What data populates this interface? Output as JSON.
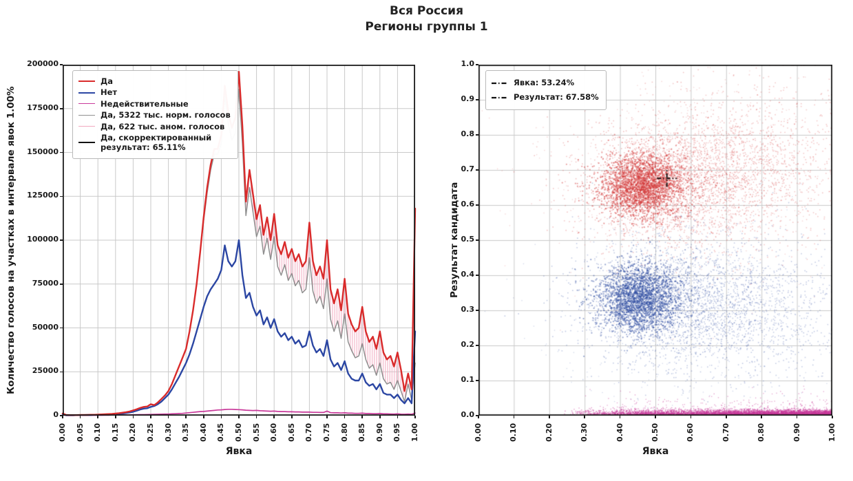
{
  "figure_title": {
    "line1": "Вся Россия",
    "line2": "Регионы группы 1"
  },
  "colors": {
    "yes": "#d92b2b",
    "no": "#2b46a3",
    "invalid": "#c9399a",
    "normal_votes": "#8f8f8f",
    "anomalous_hatch": "#f2a9bf",
    "corrected": "#111111",
    "grid": "#c9c9c9",
    "frame": "#1a1a1a",
    "scatter_yes": "#d63b3b",
    "scatter_no": "#3150a4",
    "scatter_invalid": "#c9399a"
  },
  "chart_data": [
    {
      "type": "line",
      "xlabel": "Явка",
      "ylabel": "Количество голосов на участках в интервале явок 1.00%",
      "xlim": [
        0,
        1
      ],
      "ylim": [
        0,
        200000
      ],
      "grid": true,
      "legend_position": "upper left",
      "xticks": [
        "0.00",
        "0.05",
        "0.10",
        "0.15",
        "0.20",
        "0.25",
        "0.30",
        "0.35",
        "0.40",
        "0.45",
        "0.50",
        "0.55",
        "0.60",
        "0.65",
        "0.70",
        "0.75",
        "0.80",
        "0.85",
        "0.90",
        "0.95",
        "1.00"
      ],
      "yticks": [
        "0",
        "25000",
        "50000",
        "75000",
        "100000",
        "125000",
        "150000",
        "175000",
        "200000"
      ],
      "x_start": 0,
      "x_step": 0.01,
      "legend": [
        "Да",
        "Нет",
        "Недействительные",
        "Да, 5322 тыс. норм. голосов",
        "Да, 622 тыс. аном. голосов",
        "Да, скорректированный\nрезультат: 65.11%"
      ],
      "series": [
        {
          "name": "Да",
          "color": "#d92b2b",
          "width": 2.4,
          "values": [
            1200,
            400,
            300,
            300,
            300,
            400,
            400,
            400,
            500,
            500,
            600,
            700,
            800,
            900,
            1000,
            1200,
            1400,
            1700,
            2000,
            2400,
            3000,
            3600,
            4400,
            5000,
            5200,
            6500,
            6000,
            7500,
            9500,
            11500,
            14000,
            18000,
            23000,
            28000,
            33000,
            38000,
            48000,
            60000,
            75000,
            93000,
            113000,
            130000,
            143000,
            152000,
            152000,
            160000,
            188000,
            173000,
            164000,
            170000,
            196000,
            165000,
            122000,
            140000,
            126000,
            112000,
            120000,
            103000,
            113000,
            100000,
            115000,
            97000,
            92000,
            99000,
            90000,
            95000,
            88000,
            92000,
            85000,
            88000,
            110000,
            88000,
            80000,
            85000,
            78000,
            100000,
            72000,
            64000,
            72000,
            60000,
            78000,
            58000,
            52000,
            48000,
            50000,
            62000,
            48000,
            42000,
            45000,
            38000,
            48000,
            36000,
            32000,
            34000,
            28000,
            36000,
            26000,
            14000,
            24000,
            15000,
            118000
          ]
        },
        {
          "name": "Нет",
          "color": "#2b46a3",
          "width": 2.4,
          "values": [
            800,
            200,
            200,
            200,
            300,
            300,
            300,
            400,
            400,
            500,
            500,
            600,
            700,
            800,
            900,
            900,
            1000,
            1200,
            1500,
            1800,
            2200,
            2800,
            3500,
            4000,
            4200,
            5000,
            5500,
            6500,
            8000,
            10000,
            12000,
            15000,
            18500,
            22000,
            26000,
            30000,
            35000,
            41000,
            48000,
            55000,
            62000,
            68000,
            72000,
            75000,
            78000,
            83000,
            97000,
            88000,
            85000,
            88000,
            100000,
            80000,
            67000,
            70000,
            62000,
            57000,
            60000,
            52000,
            56000,
            50000,
            55000,
            48000,
            45000,
            47000,
            43000,
            45000,
            41000,
            43000,
            39000,
            40000,
            48000,
            40000,
            36000,
            38000,
            34000,
            43000,
            32000,
            28000,
            30000,
            26000,
            31000,
            24000,
            21000,
            20000,
            20000,
            24000,
            19000,
            17000,
            18000,
            15000,
            18000,
            13000,
            12000,
            12000,
            10000,
            12000,
            9000,
            7000,
            10000,
            7000,
            48000
          ]
        },
        {
          "name": "Недействительные",
          "color": "#c9399a",
          "width": 1.7,
          "values": [
            300,
            100,
            100,
            100,
            100,
            100,
            100,
            150,
            150,
            200,
            200,
            200,
            250,
            250,
            300,
            300,
            350,
            350,
            400,
            450,
            500,
            550,
            600,
            600,
            650,
            700,
            750,
            800,
            850,
            900,
            900,
            1000,
            1100,
            1200,
            1300,
            1500,
            1700,
            1900,
            2100,
            2300,
            2400,
            2600,
            2800,
            3000,
            3200,
            3300,
            3500,
            3600,
            3600,
            3500,
            3400,
            3300,
            3100,
            3000,
            2900,
            3000,
            2800,
            2700,
            2600,
            2500,
            2600,
            2400,
            2300,
            2300,
            2200,
            2200,
            2100,
            2100,
            2000,
            2000,
            2000,
            1900,
            1900,
            1800,
            1800,
            2600,
            1700,
            1600,
            1600,
            1500,
            1600,
            1400,
            1400,
            1300,
            1300,
            1400,
            1200,
            1200,
            1100,
            1100,
            1200,
            1000,
            1000,
            950,
            900,
            1000,
            850,
            800,
            900,
            800,
            1500
          ]
        },
        {
          "name": "Да, 5322 тыс. норм. голосов",
          "color": "#8f8f8f",
          "width": 1.5,
          "values": [
            1200,
            400,
            300,
            300,
            300,
            400,
            400,
            400,
            500,
            500,
            600,
            700,
            800,
            900,
            1000,
            1200,
            1400,
            1700,
            2000,
            2400,
            3000,
            3600,
            4400,
            5000,
            5200,
            6500,
            6000,
            7500,
            9500,
            11500,
            14000,
            18000,
            23000,
            28000,
            33000,
            38000,
            48000,
            60000,
            75000,
            93000,
            111000,
            127000,
            140000,
            149000,
            149000,
            155000,
            182000,
            166000,
            157000,
            161000,
            186000,
            155000,
            114000,
            130000,
            116000,
            102000,
            108000,
            92000,
            101000,
            89000,
            102000,
            85000,
            80000,
            86000,
            77000,
            81000,
            74000,
            77000,
            70000,
            72000,
            90000,
            71000,
            64000,
            68000,
            61000,
            78000,
            55000,
            48000,
            54000,
            44000,
            58000,
            42000,
            37000,
            33000,
            34000,
            41000,
            32000,
            27000,
            29000,
            23000,
            30000,
            21000,
            18000,
            19000,
            15000,
            20000,
            14000,
            8000,
            18000,
            9000,
            30000
          ]
        },
        {
          "name": "Да, 622 тыс. аном. голосов",
          "color": "#f2a9bf",
          "type": "hatch_area",
          "between": [
            0,
            3
          ],
          "hatch_from_index": 40
        },
        {
          "name": "Да, скорректированный результат: 65.11%",
          "color": "#111111",
          "type": "reference"
        }
      ]
    },
    {
      "type": "scatter",
      "xlabel": "Явка",
      "ylabel": "Результат кандидата",
      "xlim": [
        0,
        1
      ],
      "ylim": [
        0,
        1
      ],
      "grid": true,
      "legend_position": "upper left",
      "xticks": [
        "0.00",
        "0.10",
        "0.20",
        "0.30",
        "0.40",
        "0.50",
        "0.60",
        "0.70",
        "0.80",
        "0.90",
        "1.00"
      ],
      "yticks": [
        "0.0",
        "0.1",
        "0.2",
        "0.3",
        "0.4",
        "0.5",
        "0.6",
        "0.7",
        "0.8",
        "0.9",
        "1.0"
      ],
      "legend": [
        "Явка: 53.24%",
        "Результат: 67.58%"
      ],
      "crosshair": {
        "x": 0.5324,
        "y": 0.6758,
        "color": "#111111"
      },
      "clusters": [
        {
          "name": "yes-core",
          "color": "#d63b3b",
          "n": 2600,
          "cx": 0.465,
          "cy": 0.655,
          "sx": 0.06,
          "sy": 0.045,
          "r": 1.1,
          "alpha": 0.5
        },
        {
          "name": "yes-halo",
          "color": "#d63b3b",
          "n": 2200,
          "cx": 0.55,
          "cy": 0.665,
          "sx": 0.13,
          "sy": 0.09,
          "r": 0.9,
          "alpha": 0.3
        },
        {
          "name": "yes-right",
          "color": "#d63b3b",
          "n": 1300,
          "cx": 0.78,
          "cy": 0.72,
          "sx": 0.13,
          "sy": 0.12,
          "r": 0.9,
          "alpha": 0.28
        },
        {
          "name": "yes-sparse",
          "color": "#d63b3b",
          "n": 500,
          "cx": 0.55,
          "cy": 0.7,
          "sx": 0.22,
          "sy": 0.18,
          "r": 0.8,
          "alpha": 0.22
        },
        {
          "name": "no-core",
          "color": "#3150a4",
          "n": 2400,
          "cx": 0.455,
          "cy": 0.335,
          "sx": 0.06,
          "sy": 0.048,
          "r": 1.1,
          "alpha": 0.5
        },
        {
          "name": "no-halo",
          "color": "#3150a4",
          "n": 2000,
          "cx": 0.55,
          "cy": 0.32,
          "sx": 0.13,
          "sy": 0.09,
          "r": 0.9,
          "alpha": 0.3
        },
        {
          "name": "no-right",
          "color": "#3150a4",
          "n": 1000,
          "cx": 0.78,
          "cy": 0.3,
          "sx": 0.13,
          "sy": 0.11,
          "r": 0.9,
          "alpha": 0.28
        },
        {
          "name": "no-sparse",
          "color": "#3150a4",
          "n": 450,
          "cx": 0.6,
          "cy": 0.3,
          "sx": 0.2,
          "sy": 0.15,
          "r": 0.8,
          "alpha": 0.22
        },
        {
          "name": "invalid-band",
          "color": "#c9399a",
          "n": 5200,
          "band": true,
          "x_min": 0.24,
          "x_max": 1.0,
          "x_pow": 0.55,
          "y_base": 0.0015,
          "y_scale": 0.007,
          "r": 0.8,
          "alpha": 0.55
        },
        {
          "name": "invalid-sparse",
          "color": "#c9399a",
          "n": 350,
          "band": true,
          "x_min": 0.3,
          "x_max": 1.0,
          "x_pow": 0.7,
          "y_base": 0.002,
          "y_scale": 0.028,
          "r": 0.8,
          "alpha": 0.45
        }
      ]
    }
  ]
}
